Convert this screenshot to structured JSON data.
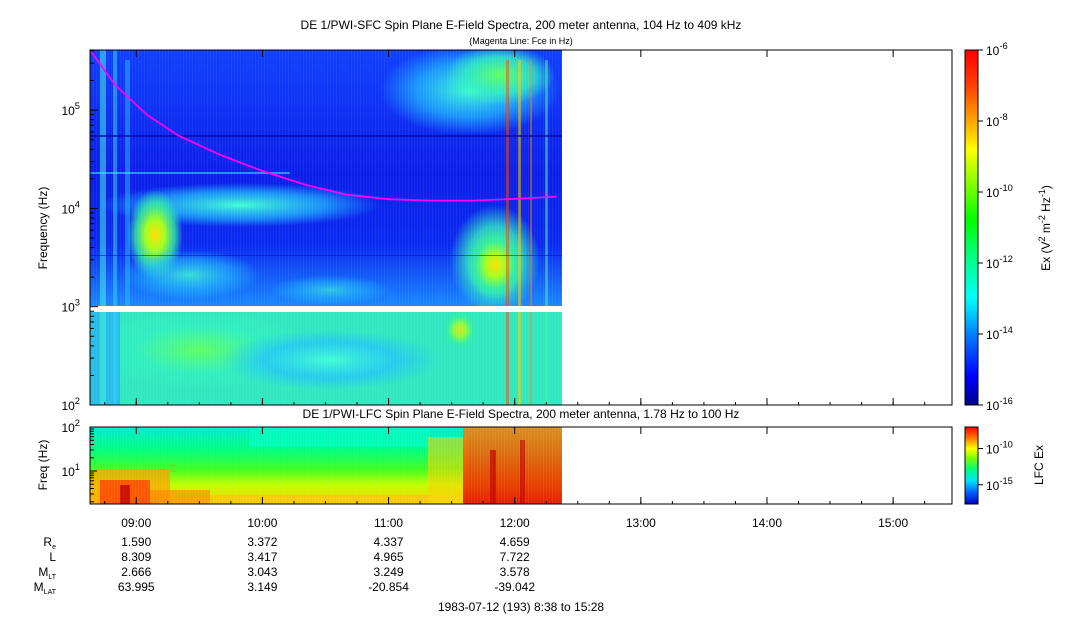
{
  "chart_data": [
    {
      "type": "heatmap",
      "title": "DE 1/PWI-SFC  Spin Plane E-Field Spectra, 200 meter antenna, 104 Hz to 409 kHz",
      "subtitle": "(Magenta Line: Fce in Hz)",
      "ylabel": "Frequency (Hz)",
      "yscale": "log",
      "ylim": [
        100,
        409000
      ],
      "y_ticks": [
        "10^2",
        "10^3",
        "10^4",
        "10^5"
      ],
      "colorbar": {
        "label_parts": [
          "Ex (V",
          "2",
          " m",
          "-2",
          " Hz",
          "-1",
          ")"
        ],
        "scale": "log",
        "range": [
          1e-16,
          1e-06
        ],
        "ticks": [
          "10^-16",
          "10^-14",
          "10^-12",
          "10^-10",
          "10^-8",
          "10^-6"
        ],
        "colors": [
          "#00008b",
          "#0000ff",
          "#0080ff",
          "#00ffff",
          "#00ff80",
          "#00ff00",
          "#80ff00",
          "#ffff00",
          "#ffa500",
          "#ff4000",
          "#ff0000"
        ]
      },
      "series": [
        {
          "name": "Fce",
          "color": "#ff00ff",
          "points": [
            [
              "08:38",
              409000
            ],
            [
              "08:50",
              180000
            ],
            [
              "09:05",
              90000
            ],
            [
              "09:20",
              55000
            ],
            [
              "09:40",
              35000
            ],
            [
              "10:00",
              24000
            ],
            [
              "10:20",
              17500
            ],
            [
              "10:40",
              13800
            ],
            [
              "11:00",
              12400
            ],
            [
              "11:20",
              12000
            ],
            [
              "11:40",
              12000
            ],
            [
              "12:00",
              12500
            ],
            [
              "12:20",
              13200
            ]
          ]
        }
      ],
      "data_end": "12:22",
      "gap_band_hz": [
        900,
        1000
      ]
    },
    {
      "type": "heatmap",
      "title": "DE 1/PWI-LFC  Spin Plane E-Field Spectra, 200 meter antenna, 1.78 Hz to 100 Hz",
      "ylabel": "Freq (Hz)",
      "yscale": "log",
      "ylim": [
        1.78,
        100
      ],
      "y_ticks": [
        "10^1",
        "10^2"
      ],
      "colorbar": {
        "label": "LFC Ex",
        "ticks": [
          "10^-15",
          "10^-10"
        ]
      },
      "x_ticks": [
        "09:00",
        "10:00",
        "11:00",
        "12:00",
        "13:00",
        "14:00",
        "15:00"
      ],
      "data_end": "12:22"
    }
  ],
  "ephemeris": {
    "rows": [
      {
        "label": "R",
        "sub": "e",
        "values": [
          "1.590",
          "3.372",
          "4.337",
          "4.659"
        ]
      },
      {
        "label": "L",
        "sub": "",
        "values": [
          "8.309",
          "3.417",
          "4.965",
          "7.722"
        ]
      },
      {
        "label": "M",
        "sub": "LT",
        "values": [
          "2.666",
          "3.043",
          "3.249",
          "3.578"
        ]
      },
      {
        "label": "M",
        "sub": "LAT",
        "values": [
          "63.995",
          "3.149",
          "-20.854",
          "-39.042"
        ]
      }
    ]
  },
  "footer": "1983-07-12 (193) 8:38 to 15:28"
}
